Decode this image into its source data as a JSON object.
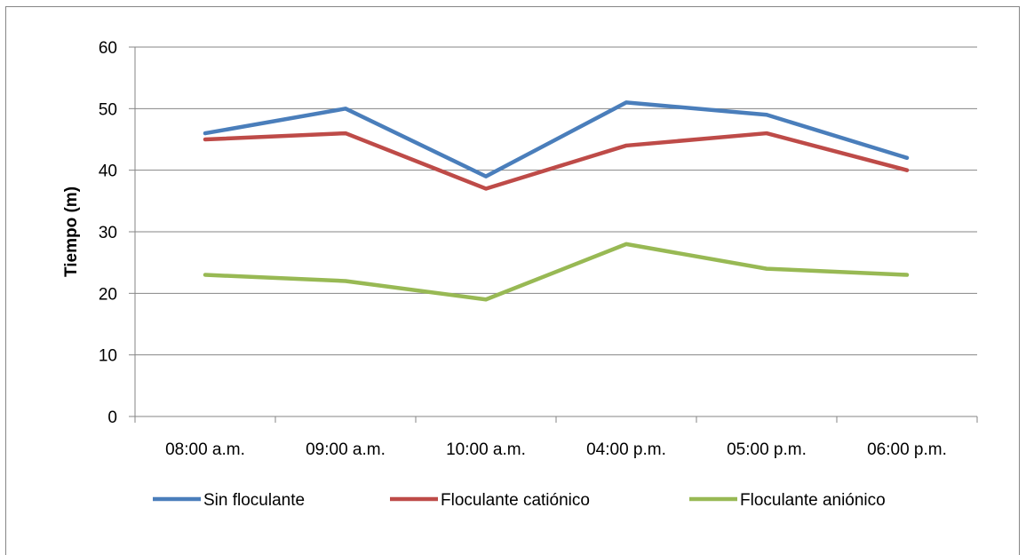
{
  "chart_data": {
    "type": "line",
    "title": "",
    "xlabel": "",
    "ylabel": "Tiempo (m)",
    "ylim": [
      0,
      60
    ],
    "yticks": [
      0,
      10,
      20,
      30,
      40,
      50,
      60
    ],
    "grid": true,
    "legend_position": "bottom",
    "categories": [
      "08:00 a.m.",
      "09:00 a.m.",
      "10:00 a.m.",
      "04:00 p.m.",
      "05:00 p.m.",
      "06:00 p.m."
    ],
    "series": [
      {
        "name": "Sin floculante",
        "color": "#4a7ebb",
        "values": [
          46,
          50,
          39,
          51,
          49,
          42
        ]
      },
      {
        "name": "Floculante catiónico",
        "color": "#be4b48",
        "values": [
          45,
          46,
          37,
          44,
          46,
          40
        ]
      },
      {
        "name": "Floculante aniónico",
        "color": "#98b954",
        "values": [
          23,
          22,
          19,
          28,
          24,
          23
        ]
      }
    ]
  },
  "colors": {
    "gridline": "#868686",
    "axis": "#868686"
  }
}
